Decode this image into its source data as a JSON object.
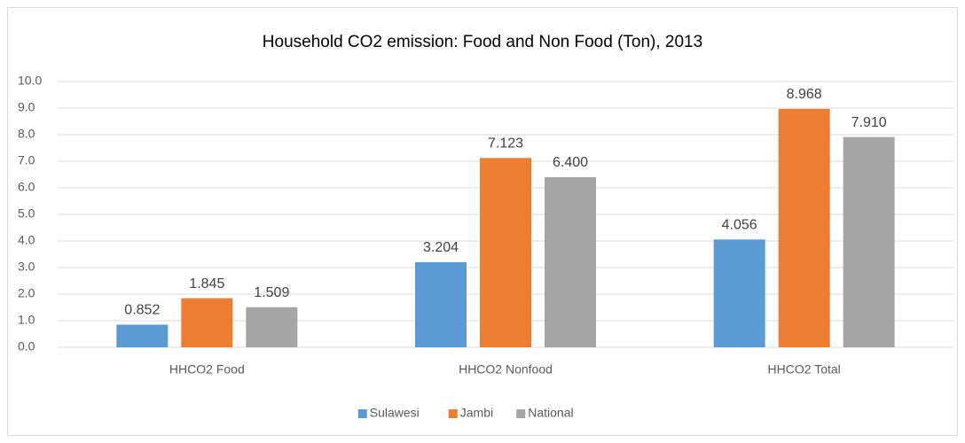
{
  "chart_data": {
    "type": "bar",
    "title": "Household CO2 emission: Food and Non Food (Ton), 2013",
    "categories": [
      "HHCO2 Food",
      "HHCO2 Nonfood",
      "HHCO2 Total"
    ],
    "series": [
      {
        "name": "Sulawesi",
        "color": "#5b9bd5",
        "values": [
          0.852,
          3.204,
          4.056
        ],
        "value_labels": [
          "0.852",
          "3.204",
          "4.056"
        ]
      },
      {
        "name": "Jambi",
        "color": "#ed7d31",
        "values": [
          1.845,
          7.123,
          8.968
        ],
        "value_labels": [
          "1.845",
          "7.123",
          "8.968"
        ]
      },
      {
        "name": "National",
        "color": "#a5a5a5",
        "values": [
          1.509,
          6.4,
          7.91
        ],
        "value_labels": [
          "1.509",
          "6.400",
          "7.910"
        ]
      }
    ],
    "ylim": [
      0,
      10
    ],
    "yticks": [
      {
        "value": 0,
        "label": "0.0"
      },
      {
        "value": 1,
        "label": "1.0"
      },
      {
        "value": 2,
        "label": "2.0"
      },
      {
        "value": 3,
        "label": "3.0"
      },
      {
        "value": 4,
        "label": "4.0"
      },
      {
        "value": 5,
        "label": "5.0"
      },
      {
        "value": 6,
        "label": "6.0"
      },
      {
        "value": 7,
        "label": "7.0"
      },
      {
        "value": 8,
        "label": "8.0"
      },
      {
        "value": 9,
        "label": "9.0"
      },
      {
        "value": 10,
        "label": "10.0"
      }
    ],
    "grid": true,
    "legend": "bottom"
  }
}
